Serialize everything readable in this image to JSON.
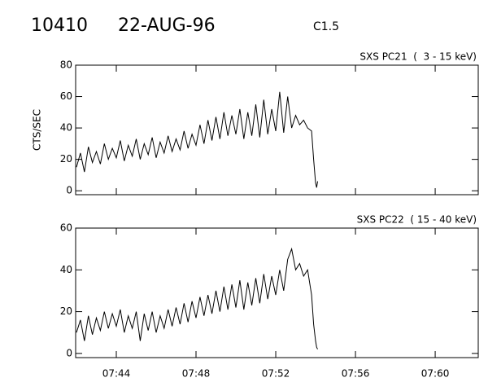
{
  "header": {
    "id": "10410",
    "date": "22-AUG-96",
    "class": "C1.5"
  },
  "chart_data": [
    {
      "type": "line",
      "title": "SXS PC21  (  3 - 15 keV)",
      "y_label": "CTS/SEC",
      "x": [
        42.0,
        42.2,
        42.4,
        42.6,
        42.8,
        43.0,
        43.2,
        43.4,
        43.6,
        43.8,
        44.0,
        44.2,
        44.4,
        44.6,
        44.8,
        45.0,
        45.2,
        45.4,
        45.6,
        45.8,
        46.0,
        46.2,
        46.4,
        46.6,
        46.8,
        47.0,
        47.2,
        47.4,
        47.6,
        47.8,
        48.0,
        48.2,
        48.4,
        48.6,
        48.8,
        49.0,
        49.2,
        49.4,
        49.6,
        49.8,
        50.0,
        50.2,
        50.4,
        50.6,
        50.8,
        51.0,
        51.2,
        51.4,
        51.6,
        51.8,
        52.0,
        52.2,
        52.4,
        52.6,
        52.8,
        53.0,
        53.2,
        53.4,
        53.6,
        53.8,
        53.9,
        54.0,
        54.05,
        54.1
      ],
      "series": [
        {
          "color": "#000000",
          "values": [
            15,
            24,
            12,
            28,
            18,
            25,
            17,
            30,
            20,
            27,
            21,
            32,
            19,
            29,
            22,
            33,
            20,
            30,
            23,
            34,
            21,
            31,
            24,
            35,
            25,
            33,
            26,
            38,
            27,
            36,
            29,
            42,
            30,
            45,
            32,
            47,
            33,
            50,
            35,
            48,
            36,
            52,
            33,
            50,
            35,
            55,
            34,
            58,
            36,
            52,
            38,
            63,
            37,
            60,
            40,
            48,
            42,
            45,
            40,
            38,
            20,
            5,
            2,
            6
          ]
        }
      ],
      "xlim": [
        41.96,
        62.16
      ],
      "xticks": [
        44,
        48,
        52,
        56,
        60
      ],
      "ylim": [
        -2.5,
        80
      ],
      "yticks": [
        0,
        20,
        40,
        60,
        80
      ]
    },
    {
      "type": "line",
      "title": "SXS PC22  ( 15 - 40 keV)",
      "x": [
        42.0,
        42.2,
        42.4,
        42.6,
        42.8,
        43.0,
        43.2,
        43.4,
        43.6,
        43.8,
        44.0,
        44.2,
        44.4,
        44.6,
        44.8,
        45.0,
        45.2,
        45.4,
        45.6,
        45.8,
        46.0,
        46.2,
        46.4,
        46.6,
        46.8,
        47.0,
        47.2,
        47.4,
        47.6,
        47.8,
        48.0,
        48.2,
        48.4,
        48.6,
        48.8,
        49.0,
        49.2,
        49.4,
        49.6,
        49.8,
        50.0,
        50.2,
        50.4,
        50.6,
        50.8,
        51.0,
        51.2,
        51.4,
        51.6,
        51.8,
        52.0,
        52.2,
        52.4,
        52.6,
        52.8,
        53.0,
        53.2,
        53.4,
        53.6,
        53.8,
        53.9,
        54.0,
        54.05,
        54.1
      ],
      "series": [
        {
          "color": "#000000",
          "values": [
            10,
            16,
            6,
            18,
            9,
            17,
            11,
            20,
            12,
            19,
            13,
            21,
            10,
            18,
            12,
            20,
            6,
            19,
            11,
            20,
            10,
            18,
            12,
            21,
            13,
            22,
            14,
            24,
            15,
            25,
            17,
            27,
            18,
            28,
            19,
            30,
            20,
            32,
            21,
            33,
            22,
            35,
            21,
            34,
            23,
            36,
            24,
            38,
            26,
            37,
            28,
            40,
            30,
            45,
            50,
            40,
            43,
            37,
            40,
            28,
            14,
            6,
            3,
            2
          ]
        }
      ],
      "xlim": [
        41.96,
        62.16
      ],
      "xticks": [
        {
          "value": 44,
          "label": "07:44"
        },
        {
          "value": 48,
          "label": "07:48"
        },
        {
          "value": 52,
          "label": "07:52"
        },
        {
          "value": 56,
          "label": "07:56"
        },
        {
          "value": 60,
          "label": "07:60"
        }
      ],
      "ylim": [
        -2,
        60
      ],
      "yticks": [
        0,
        20,
        40,
        60
      ]
    }
  ]
}
